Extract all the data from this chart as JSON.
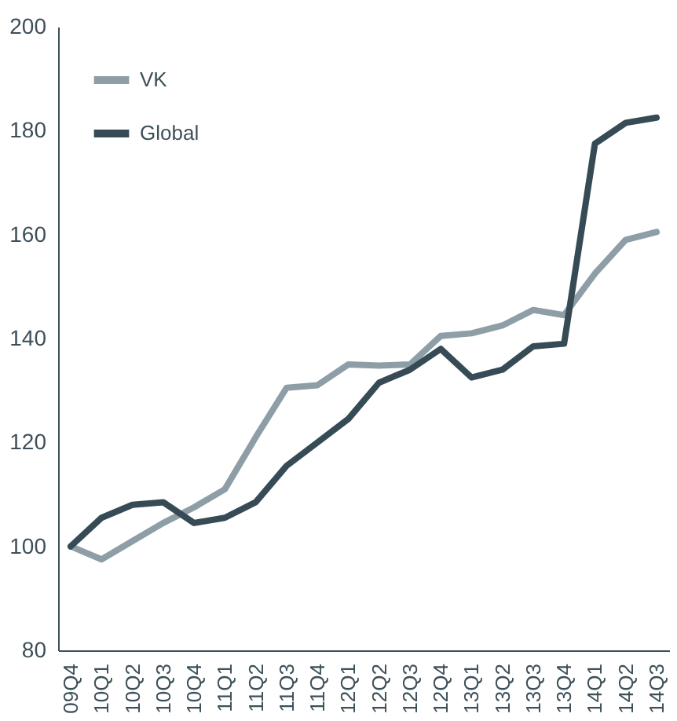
{
  "chart_data": {
    "type": "line",
    "categories": [
      "09Q4",
      "10Q1",
      "10Q2",
      "10Q3",
      "10Q4",
      "11Q1",
      "11Q2",
      "11Q3",
      "11Q4",
      "12Q1",
      "12Q2",
      "12Q3",
      "12Q4",
      "13Q1",
      "13Q2",
      "13Q3",
      "13Q4",
      "14Q1",
      "14Q2",
      "14Q3"
    ],
    "series": [
      {
        "name": "VK",
        "color": "#8e9ea6",
        "values": [
          100,
          97.5,
          101,
          104.5,
          107.5,
          111,
          121,
          130.5,
          131,
          135,
          134.8,
          135,
          140.5,
          141,
          142.5,
          145.5,
          144.5,
          152.5,
          159,
          160.5
        ]
      },
      {
        "name": "Global",
        "color": "#364b55",
        "values": [
          100,
          105.5,
          108,
          108.5,
          104.5,
          105.5,
          108.5,
          115.5,
          120,
          124.5,
          131.5,
          134,
          138,
          132.5,
          134,
          138.5,
          139,
          177.5,
          181.5,
          182.5
        ]
      }
    ],
    "ylim": [
      80,
      200
    ],
    "yticks": [
      80,
      100,
      120,
      140,
      160,
      180,
      200
    ],
    "grid": false,
    "legend": "top left",
    "marker": "none",
    "line_style": "solid"
  }
}
